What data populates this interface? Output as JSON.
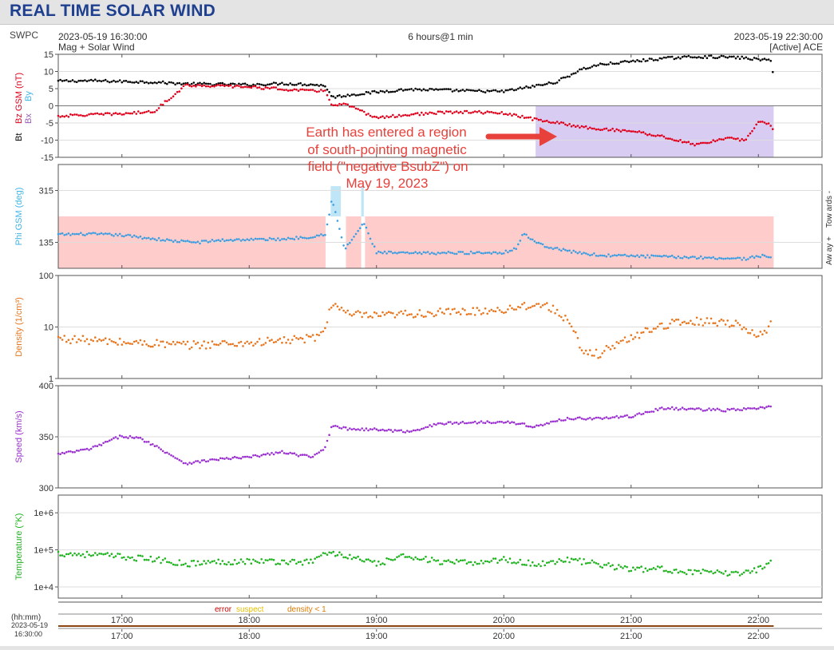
{
  "page_title": "REAL TIME SOLAR WIND",
  "header": {
    "source": "SWPC",
    "start_time": "2023-05-19 16:30:00",
    "panel_caption": "Mag + Solar Wind",
    "span": "6 hours@1 min",
    "end_time": "2023-05-19 22:30:00",
    "spacecraft": "[Active] ACE"
  },
  "annotation": {
    "lines": [
      "Earth has entered a region",
      "of south-pointing magnetic",
      "field (\"negative BsubZ\") on",
      "May 19, 2023"
    ],
    "color": "#e8403a"
  },
  "legend": {
    "error": "error",
    "suspect": "suspect",
    "density": "density < 1",
    "error_color": "#cc0000",
    "suspect_color": "#e5c000",
    "density_color": "#e07a00"
  },
  "time_axis": {
    "unit_label": "(hh:mm)",
    "date": "2023-05-19",
    "start": "16:30:00",
    "tick_labels": [
      "17:00",
      "18:00",
      "19:00",
      "20:00",
      "21:00",
      "22:00"
    ]
  },
  "colors": {
    "bt": "#000000",
    "bz": "#e0001b",
    "bx": "#9b59b6",
    "by": "#3fb6e6",
    "phi": "#3c9ee0",
    "density": "#e8761e",
    "speed": "#9b30d0",
    "temperature": "#1fb31f",
    "southward_shade": "#d9ccf3",
    "away_shade": "#ffcccc",
    "toward_shade": "#bfe6f7"
  },
  "chart_data": [
    {
      "type": "scatter",
      "ylabel_parts": [
        "Bt",
        "Bz GSM (nT)",
        "Bx",
        "By"
      ],
      "ylim": [
        -15,
        15
      ],
      "y_ticks": [
        "15",
        "10",
        "5",
        "0",
        "-5",
        "-10",
        "-15"
      ],
      "x_range_hours": [
        16.5,
        22.5
      ],
      "series": [
        {
          "name": "Bt",
          "x": [
            16.5,
            16.75,
            17.0,
            17.25,
            17.5,
            17.75,
            18.0,
            18.25,
            18.5,
            18.6,
            18.65,
            18.75,
            19.0,
            19.25,
            19.5,
            19.75,
            20.0,
            20.25,
            20.4,
            20.5,
            20.6,
            20.75,
            21.0,
            21.25,
            21.5,
            21.75,
            21.9,
            22.0,
            22.1,
            22.12
          ],
          "y": [
            7.2,
            7.3,
            7.1,
            6.9,
            6.4,
            6.3,
            6.1,
            6.5,
            6.2,
            5.8,
            2.5,
            3.0,
            4.0,
            4.8,
            4.6,
            4.3,
            4.2,
            5.8,
            6.8,
            8.5,
            10.5,
            12.0,
            12.9,
            13.8,
            14.3,
            14.2,
            13.9,
            13.5,
            13.2,
            8.5
          ]
        },
        {
          "name": "Bz GSM",
          "x": [
            16.5,
            16.75,
            17.0,
            17.25,
            17.5,
            17.75,
            18.0,
            18.25,
            18.5,
            18.6,
            18.65,
            18.75,
            19.0,
            19.25,
            19.5,
            19.75,
            20.0,
            20.25,
            20.4,
            20.5,
            20.75,
            21.0,
            21.25,
            21.5,
            21.75,
            21.9,
            22.0,
            22.1,
            22.12
          ],
          "y": [
            -3.0,
            -2.6,
            -2.3,
            -1.7,
            6.0,
            5.8,
            5.5,
            4.9,
            4.3,
            4.5,
            0.0,
            0.5,
            -3.5,
            -2.6,
            -2.0,
            -1.8,
            -2.2,
            -4.0,
            -4.8,
            -5.5,
            -6.8,
            -7.3,
            -9.0,
            -11.3,
            -9.5,
            -10.0,
            -4.5,
            -5.5,
            -7.5
          ]
        }
      ],
      "southward_intervals_hours": [
        [
          20.25,
          22.12
        ]
      ]
    },
    {
      "type": "scatter",
      "ylabel": "Phi GSM (deg)",
      "side_labels": [
        "Tow ards -",
        "Aw ay +"
      ],
      "ylim": [
        45,
        405
      ],
      "y_ticks": [
        "315",
        "135"
      ],
      "x_range_hours": [
        16.5,
        22.5
      ],
      "series": [
        {
          "name": "Phi GSM",
          "x": [
            16.5,
            16.75,
            17.0,
            17.2,
            17.4,
            17.6,
            17.75,
            18.0,
            18.25,
            18.5,
            18.6,
            18.65,
            18.75,
            18.9,
            19.0,
            19.25,
            19.5,
            19.75,
            20.0,
            20.1,
            20.15,
            20.3,
            20.5,
            20.75,
            21.0,
            21.25,
            21.5,
            21.75,
            21.9,
            22.0,
            22.1
          ],
          "y": [
            162,
            164,
            160,
            150,
            140,
            135,
            142,
            145,
            146,
            155,
            165,
            285,
            110,
            202,
            100,
            97,
            98,
            99,
            100,
            115,
            165,
            125,
            105,
            90,
            88,
            85,
            83,
            80,
            78,
            88,
            86
          ]
        }
      ],
      "away_intervals_hours": [
        [
          16.5,
          18.6
        ],
        [
          18.76,
          18.88
        ],
        [
          18.91,
          22.12
        ]
      ],
      "toward_intervals_hours": [
        [
          18.64,
          18.72
        ],
        [
          18.88,
          18.9
        ]
      ]
    },
    {
      "type": "scatter",
      "ylabel": "Density (1/cm³)",
      "yscale": "log",
      "ylim": [
        1,
        100
      ],
      "y_ticks": [
        "100",
        "10",
        "1"
      ],
      "x_range_hours": [
        16.5,
        22.5
      ],
      "series": [
        {
          "name": "Density",
          "x": [
            16.5,
            16.75,
            17.0,
            17.25,
            17.5,
            17.75,
            18.0,
            18.25,
            18.5,
            18.6,
            18.65,
            18.75,
            19.0,
            19.25,
            19.5,
            19.75,
            20.0,
            20.25,
            20.4,
            20.5,
            20.6,
            20.75,
            21.0,
            21.25,
            21.5,
            21.75,
            21.9,
            22.0,
            22.1
          ],
          "y": [
            6,
            5.5,
            5,
            4.8,
            4.4,
            4.7,
            4.9,
            5.4,
            6.0,
            8.5,
            30,
            18,
            16,
            18,
            19,
            20,
            22,
            28,
            22,
            13,
            3.2,
            3.0,
            6.0,
            11,
            13,
            12.5,
            10,
            6.0,
            11
          ]
        }
      ]
    },
    {
      "type": "scatter",
      "ylabel": "Speed (km/s)",
      "ylim": [
        300,
        400
      ],
      "y_ticks": [
        "400",
        "350",
        "300"
      ],
      "x_range_hours": [
        16.5,
        22.5
      ],
      "series": [
        {
          "name": "Speed",
          "x": [
            16.5,
            16.75,
            17.0,
            17.15,
            17.25,
            17.5,
            17.75,
            18.0,
            18.25,
            18.5,
            18.6,
            18.65,
            18.75,
            19.0,
            19.25,
            19.5,
            19.75,
            20.0,
            20.25,
            20.5,
            20.75,
            21.0,
            21.25,
            21.5,
            21.75,
            21.9,
            22.0,
            22.1
          ],
          "y": [
            333,
            338,
            351,
            348,
            342,
            324,
            328,
            330,
            335,
            330,
            340,
            362,
            358,
            357,
            355,
            363,
            364,
            365,
            360,
            368,
            368,
            370,
            378,
            377,
            376,
            377,
            378,
            379
          ]
        }
      ]
    },
    {
      "type": "scatter",
      "ylabel": "Temperature (°K)",
      "yscale": "log",
      "ylim": [
        5000,
        3000000
      ],
      "y_ticks": [
        "1e+6",
        "1e+5",
        "1e+4"
      ],
      "x_range_hours": [
        16.5,
        22.5
      ],
      "series": [
        {
          "name": "Temperature",
          "x": [
            16.5,
            16.75,
            17.0,
            17.25,
            17.5,
            17.75,
            18.0,
            18.25,
            18.5,
            18.6,
            18.75,
            19.0,
            19.25,
            19.5,
            19.75,
            20.0,
            20.25,
            20.5,
            20.75,
            21.0,
            21.25,
            21.5,
            21.75,
            21.9,
            22.0,
            22.1
          ],
          "y": [
            80000,
            75000,
            65000,
            55000,
            42000,
            47000,
            50000,
            48000,
            47000,
            85000,
            70000,
            40000,
            70000,
            45000,
            45000,
            55000,
            40000,
            55000,
            40000,
            30000,
            30000,
            25000,
            23000,
            25000,
            30000,
            50000
          ]
        }
      ]
    }
  ]
}
